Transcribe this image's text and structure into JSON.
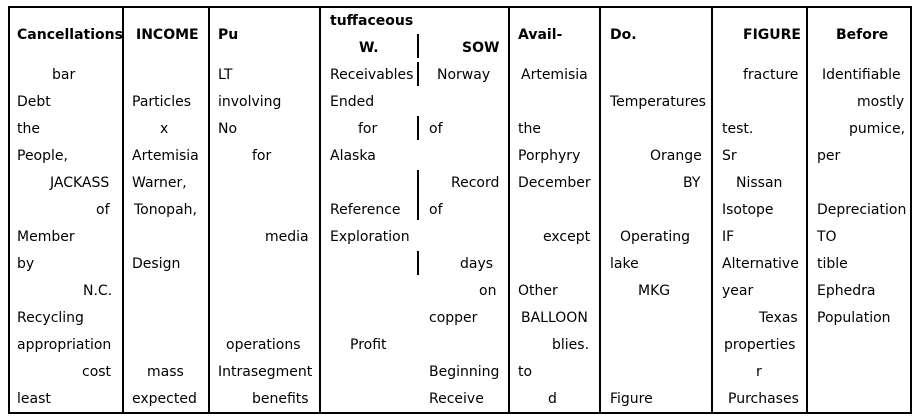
{
  "headers": {
    "c1": "Cancellations",
    "c2": "INCOME",
    "c3": "Pu",
    "c4_top": "tuffaceous",
    "c4_a": "W.",
    "c4_b": "SOW",
    "c5": "Avail-",
    "c6": "Do.",
    "c7": "FIGURE",
    "c8": "Before"
  },
  "cells": {
    "c1": [
      "bar",
      "Debt",
      "the",
      "People,",
      "JACKASS",
      "of",
      "Member",
      "by",
      "N.C.",
      "Recycling",
      "appropriation",
      "cost",
      "least"
    ],
    "c2": [
      "Particles",
      "x",
      "Artemisia",
      "Warner,",
      "Tonopah,",
      "Design",
      "mass",
      "expected"
    ],
    "c3": [
      "LT",
      "involving",
      "No",
      "for",
      "media",
      "operations",
      "Intrasegment",
      "benefits"
    ],
    "c4a": [
      "Receivables",
      "Ended",
      "for",
      "Alaska",
      "Reference",
      "Exploration",
      "Profit"
    ],
    "c4b": [
      "Norway",
      "of",
      "Record",
      "of",
      "days",
      "on",
      "copper",
      "Beginning",
      "Receive"
    ],
    "c5": [
      "Artemisia",
      "the",
      "Porphyry",
      "December",
      "except",
      "Other",
      "BALLOON",
      "blies.",
      "to",
      "d"
    ],
    "c6": [
      "Temperatures",
      "Orange",
      "BY",
      "Operating",
      "lake",
      "MKG",
      "Figure"
    ],
    "c7": [
      "fracture",
      "test.",
      "Sr",
      "Nissan",
      "Isotope",
      "IF",
      "Alternative",
      "year",
      "Texas",
      "properties",
      "r",
      "Purchases"
    ],
    "c8": [
      "Identifiable",
      "mostly",
      "pumice,",
      "per",
      "Depreciation",
      "TO",
      "tible",
      "Ephedra",
      "Population"
    ]
  }
}
